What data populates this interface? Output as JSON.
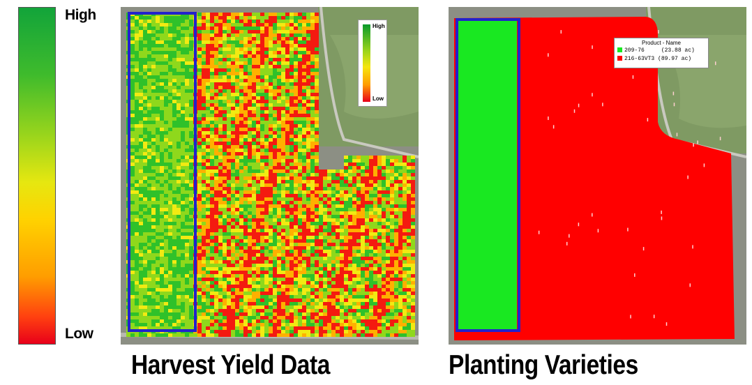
{
  "scale": {
    "high_label": "High",
    "low_label": "Low"
  },
  "yield_map": {
    "caption": "Harvest Yield Data",
    "legend": {
      "high_label": "High",
      "low_label": "Low"
    }
  },
  "variety_map": {
    "caption": "Planting Varieties",
    "legend": {
      "title": "Product - Name",
      "items": [
        {
          "name": "209-76",
          "area": "(23.88 ac)",
          "color": "#19e821"
        },
        {
          "name": "216-63VT3",
          "area": "(89.97 ac)",
          "color": "#ff0000"
        }
      ]
    }
  },
  "colors": {
    "highlight_box": "#2222cc",
    "green": "#19e821",
    "red": "#ff0000",
    "satellite_grass": "#7f9a63"
  }
}
